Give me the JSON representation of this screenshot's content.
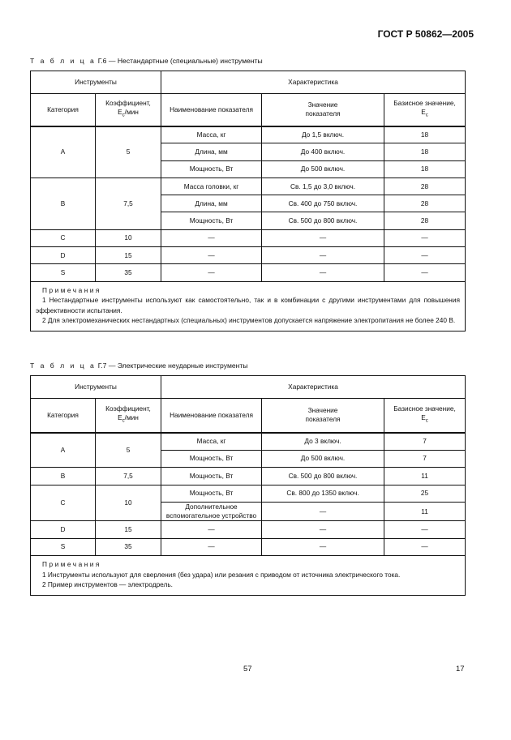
{
  "header": {
    "standard": "ГОСТ Р 50862—2005"
  },
  "columns": {
    "instruments": "Инструменты",
    "characteristic": "Характеристика",
    "category": "Категория",
    "coef": "Коэффициент,",
    "coef_unit": "E",
    "coef_sub": "c",
    "coef_tail": "/мин",
    "indicator": "Наименование показателя",
    "value1": "Значение",
    "value2": "показателя",
    "base": "Базисное значение,",
    "base_unit": "E",
    "base_sub": "c"
  },
  "tables": [
    {
      "label": "Т а б л и ц а",
      "number": "Г.6",
      "title": "— Нестандартные (специальные) инструменты",
      "groups": [
        {
          "category": "A",
          "coef": "5",
          "rows": [
            [
              "Масса, кг",
              "До 1,5 включ.",
              "18"
            ],
            [
              "Длина, мм",
              "До 400 включ.",
              "18"
            ],
            [
              "Мощность, Вт",
              "До 500 включ.",
              "18"
            ]
          ]
        },
        {
          "category": "B",
          "coef": "7,5",
          "rows": [
            [
              "Масса головки, кг",
              "Св. 1,5 до 3,0 включ.",
              "28"
            ],
            [
              "Длина, мм",
              "Св. 400 до 750 включ.",
              "28"
            ],
            [
              "Мощность, Вт",
              "Св. 500 до 800 включ.",
              "28"
            ]
          ]
        },
        {
          "category": "C",
          "coef": "10",
          "rows": [
            [
              "—",
              "—",
              "—"
            ]
          ]
        },
        {
          "category": "D",
          "coef": "15",
          "rows": [
            [
              "—",
              "—",
              "—"
            ]
          ]
        },
        {
          "category": "S",
          "coef": "35",
          "rows": [
            [
              "—",
              "—",
              "—"
            ]
          ]
        }
      ],
      "notes_title": "Примечания",
      "notes": [
        "1 Нестандартные инструменты используют как самостоятельно, так и в комбинации с другими инструментами для повышения эффективности испытания.",
        "2 Для электромеханических нестандартных (специальных) инструментов допускается напряжение электропитания не более 240 В."
      ]
    },
    {
      "label": "Т а б л и ц а",
      "number": "Г.7",
      "title": "— Электрические неударные инструменты",
      "groups": [
        {
          "category": "A",
          "coef": "5",
          "rows": [
            [
              "Масса, кг",
              "До 3 включ.",
              "7"
            ],
            [
              "Мощность, Вт",
              "До 500 включ.",
              "7"
            ]
          ]
        },
        {
          "category": "B",
          "coef": "7,5",
          "rows": [
            [
              "Мощность, Вт",
              "Св. 500 до 800 включ.",
              "11"
            ]
          ]
        },
        {
          "category": "C",
          "coef": "10",
          "rows": [
            [
              "Мощность, Вт",
              "Св. 800 до 1350 включ.",
              "25"
            ],
            [
              "Дополнительное вспомогательное устройство",
              "—",
              "11"
            ]
          ]
        },
        {
          "category": "D",
          "coef": "15",
          "rows": [
            [
              "—",
              "—",
              "—"
            ]
          ]
        },
        {
          "category": "S",
          "coef": "35",
          "rows": [
            [
              "—",
              "—",
              "—"
            ]
          ]
        }
      ],
      "notes_title": "Примечания",
      "notes": [
        "1 Инструменты используют для сверления (без удара) или резания с приводом от источника электрического тока.",
        "2 Пример инструментов — электродрель."
      ]
    }
  ],
  "footer": {
    "page_center": "57",
    "page_right": "17"
  }
}
